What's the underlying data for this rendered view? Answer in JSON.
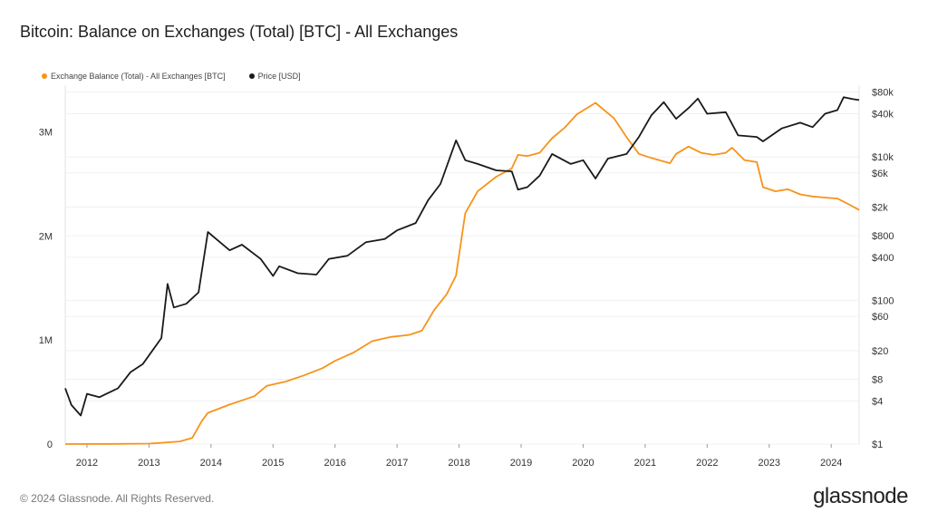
{
  "title": "Bitcoin: Balance on Exchanges (Total) [BTC] - All Exchanges",
  "footer": "© 2024 Glassnode. All Rights Reserved.",
  "brand": "glassnode",
  "chart_data": {
    "type": "line",
    "title": "Bitcoin: Balance on Exchanges (Total) [BTC] - All Exchanges",
    "x_ticks": [
      "2012",
      "2013",
      "2014",
      "2015",
      "2016",
      "2017",
      "2018",
      "2019",
      "2020",
      "2021",
      "2022",
      "2023",
      "2024"
    ],
    "xlim": [
      2011.65,
      2024.45
    ],
    "y_left": {
      "ticks": [
        {
          "label": "0",
          "value": 0
        },
        {
          "label": "1M",
          "value": 1000000
        },
        {
          "label": "2M",
          "value": 2000000
        },
        {
          "label": "3M",
          "value": 3000000
        }
      ],
      "lim": [
        0,
        3450000
      ]
    },
    "y_right": {
      "scale": "log",
      "ticks": [
        {
          "label": "$1",
          "value": 1
        },
        {
          "label": "$4",
          "value": 4
        },
        {
          "label": "$8",
          "value": 8
        },
        {
          "label": "$20",
          "value": 20
        },
        {
          "label": "$60",
          "value": 60
        },
        {
          "label": "$100",
          "value": 100
        },
        {
          "label": "$400",
          "value": 400
        },
        {
          "label": "$800",
          "value": 800
        },
        {
          "label": "$2k",
          "value": 2000
        },
        {
          "label": "$6k",
          "value": 6000
        },
        {
          "label": "$10k",
          "value": 10000
        },
        {
          "label": "$40k",
          "value": 40000
        },
        {
          "label": "$80k",
          "value": 80000
        }
      ],
      "lim": [
        1,
        100000
      ]
    },
    "grid": true,
    "legend_position": "top-left",
    "series": [
      {
        "name": "Exchange Balance (Total) - All Exchanges [BTC]",
        "color": "#f7931a",
        "axis": "left",
        "points": [
          [
            2011.65,
            0
          ],
          [
            2012.5,
            2000
          ],
          [
            2013.0,
            4000
          ],
          [
            2013.2,
            12000
          ],
          [
            2013.5,
            25000
          ],
          [
            2013.7,
            60000
          ],
          [
            2013.85,
            220000
          ],
          [
            2013.95,
            300000
          ],
          [
            2014.3,
            380000
          ],
          [
            2014.7,
            460000
          ],
          [
            2014.9,
            560000
          ],
          [
            2015.2,
            600000
          ],
          [
            2015.5,
            660000
          ],
          [
            2015.8,
            730000
          ],
          [
            2016.0,
            800000
          ],
          [
            2016.3,
            880000
          ],
          [
            2016.6,
            990000
          ],
          [
            2016.9,
            1030000
          ],
          [
            2017.2,
            1050000
          ],
          [
            2017.4,
            1090000
          ],
          [
            2017.6,
            1290000
          ],
          [
            2017.8,
            1440000
          ],
          [
            2017.95,
            1620000
          ],
          [
            2018.1,
            2220000
          ],
          [
            2018.3,
            2430000
          ],
          [
            2018.6,
            2570000
          ],
          [
            2018.85,
            2650000
          ],
          [
            2018.95,
            2780000
          ],
          [
            2019.1,
            2770000
          ],
          [
            2019.3,
            2800000
          ],
          [
            2019.5,
            2940000
          ],
          [
            2019.7,
            3040000
          ],
          [
            2019.9,
            3170000
          ],
          [
            2020.2,
            3280000
          ],
          [
            2020.5,
            3130000
          ],
          [
            2020.7,
            2950000
          ],
          [
            2020.9,
            2790000
          ],
          [
            2021.1,
            2750000
          ],
          [
            2021.4,
            2700000
          ],
          [
            2021.5,
            2790000
          ],
          [
            2021.7,
            2860000
          ],
          [
            2021.9,
            2800000
          ],
          [
            2022.1,
            2780000
          ],
          [
            2022.3,
            2800000
          ],
          [
            2022.4,
            2850000
          ],
          [
            2022.6,
            2730000
          ],
          [
            2022.8,
            2710000
          ],
          [
            2022.9,
            2470000
          ],
          [
            2023.1,
            2430000
          ],
          [
            2023.3,
            2450000
          ],
          [
            2023.5,
            2400000
          ],
          [
            2023.7,
            2380000
          ],
          [
            2023.9,
            2370000
          ],
          [
            2024.1,
            2360000
          ],
          [
            2024.3,
            2300000
          ],
          [
            2024.45,
            2250000
          ]
        ]
      },
      {
        "name": "Price [USD]",
        "color": "#1a1a1a",
        "axis": "right",
        "points": [
          [
            2011.65,
            6
          ],
          [
            2011.75,
            3.5
          ],
          [
            2011.9,
            2.5
          ],
          [
            2012.0,
            5
          ],
          [
            2012.2,
            4.5
          ],
          [
            2012.5,
            6
          ],
          [
            2012.7,
            10
          ],
          [
            2012.9,
            13
          ],
          [
            2013.2,
            30
          ],
          [
            2013.3,
            170
          ],
          [
            2013.4,
            80
          ],
          [
            2013.6,
            90
          ],
          [
            2013.8,
            130
          ],
          [
            2013.95,
            900
          ],
          [
            2014.1,
            700
          ],
          [
            2014.3,
            500
          ],
          [
            2014.5,
            600
          ],
          [
            2014.8,
            380
          ],
          [
            2015.0,
            220
          ],
          [
            2015.1,
            300
          ],
          [
            2015.4,
            240
          ],
          [
            2015.7,
            230
          ],
          [
            2015.9,
            380
          ],
          [
            2016.2,
            420
          ],
          [
            2016.5,
            650
          ],
          [
            2016.8,
            720
          ],
          [
            2017.0,
            950
          ],
          [
            2017.3,
            1200
          ],
          [
            2017.5,
            2500
          ],
          [
            2017.7,
            4200
          ],
          [
            2017.95,
            17000
          ],
          [
            2018.1,
            9000
          ],
          [
            2018.3,
            8000
          ],
          [
            2018.6,
            6500
          ],
          [
            2018.85,
            6300
          ],
          [
            2018.95,
            3500
          ],
          [
            2019.1,
            3800
          ],
          [
            2019.3,
            5500
          ],
          [
            2019.5,
            11000
          ],
          [
            2019.8,
            8000
          ],
          [
            2020.0,
            9000
          ],
          [
            2020.2,
            5000
          ],
          [
            2020.4,
            9500
          ],
          [
            2020.7,
            11000
          ],
          [
            2020.9,
            19000
          ],
          [
            2021.1,
            38000
          ],
          [
            2021.3,
            58000
          ],
          [
            2021.5,
            34000
          ],
          [
            2021.7,
            48000
          ],
          [
            2021.85,
            65000
          ],
          [
            2022.0,
            40000
          ],
          [
            2022.3,
            42000
          ],
          [
            2022.5,
            20000
          ],
          [
            2022.8,
            19000
          ],
          [
            2022.9,
            16500
          ],
          [
            2023.2,
            25000
          ],
          [
            2023.5,
            30000
          ],
          [
            2023.7,
            26000
          ],
          [
            2023.9,
            40000
          ],
          [
            2024.1,
            45000
          ],
          [
            2024.2,
            68000
          ],
          [
            2024.35,
            64000
          ],
          [
            2024.45,
            62000
          ]
        ]
      }
    ]
  }
}
